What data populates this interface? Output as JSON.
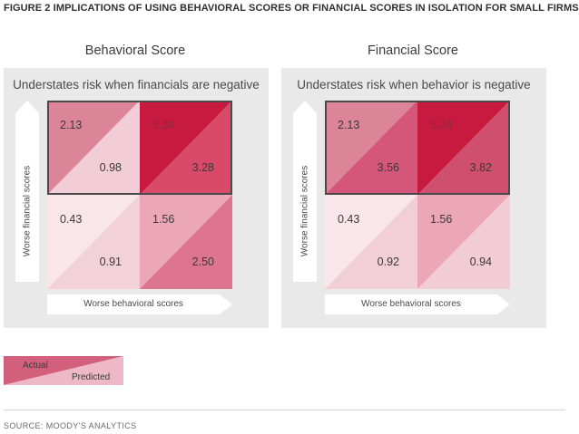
{
  "figure_title": "FIGURE 2 IMPLICATIONS OF USING BEHAVIORAL SCORES OR FINANCIAL SCORES IN ISOLATION FOR SMALL FIRMS",
  "source": "SOURCE: MOODY'S ANALYTICS",
  "legend": {
    "actual": "Actual",
    "predicted": "Predicted"
  },
  "colors": {
    "panel_bg": "#e9e9ea",
    "actual_legend": "#d2607c",
    "predicted_legend": "#eeb8c6",
    "frame": "#4a4a4a"
  },
  "chart_data": [
    {
      "type": "heatmap",
      "title": "Behavioral Score",
      "subtitle": "Understates risk when financials are negative",
      "xlabel": "Worse behavioral scores",
      "ylabel": "Worse financial scores",
      "highlighted_row": "top",
      "cells": [
        {
          "position": "top-left",
          "actual": "2.13",
          "predicted": "0.98",
          "actual_color": "#dc8498",
          "predicted_color": "#f2ccd6"
        },
        {
          "position": "top-right",
          "actual": "5.24",
          "predicted": "3.28",
          "actual_color": "#c8193e",
          "predicted_color": "#d94a68"
        },
        {
          "position": "bottom-left",
          "actual": "0.43",
          "predicted": "0.91",
          "actual_color": "#f9e6eb",
          "predicted_color": "#f3d1da"
        },
        {
          "position": "bottom-right",
          "actual": "1.56",
          "predicted": "2.50",
          "actual_color": "#eba6b7",
          "predicted_color": "#de7590"
        }
      ]
    },
    {
      "type": "heatmap",
      "title": "Financial Score",
      "subtitle": "Understates risk when behavior is negative",
      "xlabel": "Worse behavioral scores",
      "ylabel": "Worse financial scores",
      "highlighted_row": "top",
      "cells": [
        {
          "position": "top-left",
          "actual": "2.13",
          "predicted": "3.56",
          "actual_color": "#dc8498",
          "predicted_color": "#d4567a"
        },
        {
          "position": "top-right",
          "actual": "5.24",
          "predicted": "3.82",
          "actual_color": "#c8193e",
          "predicted_color": "#d14f6e"
        },
        {
          "position": "bottom-left",
          "actual": "0.43",
          "predicted": "0.92",
          "actual_color": "#f9e6eb",
          "predicted_color": "#f2cfd8"
        },
        {
          "position": "bottom-right",
          "actual": "1.56",
          "predicted": "0.94",
          "actual_color": "#eba6b7",
          "predicted_color": "#f1cbd5"
        }
      ]
    }
  ]
}
